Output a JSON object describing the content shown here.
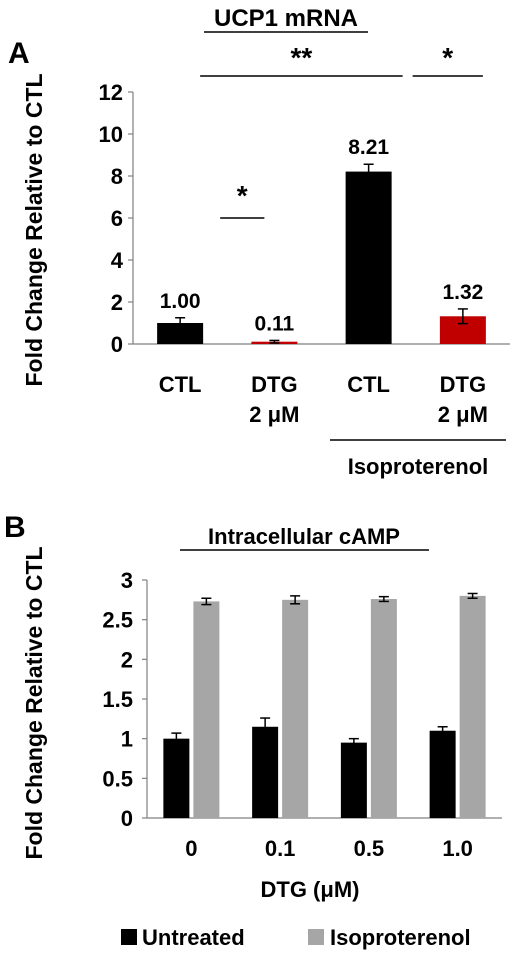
{
  "panels": [
    {
      "letter": "A"
    },
    {
      "letter": "B"
    }
  ],
  "colors": {
    "black": "#000000",
    "red": "#c00000",
    "gray": "#a6a6a6",
    "axis": "#808080"
  },
  "chart_data": [
    {
      "type": "bar",
      "title": "UCP1 mRNA",
      "ylabel": "Fold Change Relative to CTL",
      "ylim": [
        0,
        12
      ],
      "yticks": [
        "0",
        "2",
        "4",
        "6",
        "8",
        "10",
        "12"
      ],
      "categories": [
        {
          "line1": "CTL",
          "line2": ""
        },
        {
          "line1": "DTG",
          "line2": "2 μM"
        },
        {
          "line1": "CTL",
          "line2": ""
        },
        {
          "line1": "DTG",
          "line2": "2 μM"
        }
      ],
      "values": [
        1.0,
        0.11,
        8.21,
        1.32
      ],
      "errors": [
        0.25,
        0.06,
        0.35,
        0.35
      ],
      "value_labels": [
        "1.00",
        "0.11",
        "8.21",
        "1.32"
      ],
      "bar_colors": [
        "#000000",
        "#c00000",
        "#000000",
        "#c00000"
      ],
      "group_label": "Isoproterenol",
      "significance": [
        {
          "label": "*",
          "from": 0,
          "to": 1
        },
        {
          "label": "**",
          "from": 0,
          "to": 2
        },
        {
          "label": "*",
          "from": 2,
          "to": 3
        }
      ]
    },
    {
      "type": "bar",
      "title": "Intracellular cAMP",
      "ylabel": "Fold Change Relative to CTL",
      "xlabel": "DTG (μM)",
      "ylim": [
        0,
        3
      ],
      "yticks": [
        "0",
        "0.5",
        "1",
        "1.5",
        "2",
        "2.5",
        "3"
      ],
      "categories": [
        "0",
        "0.1",
        "0.5",
        "1.0"
      ],
      "series": [
        {
          "name": "Untreated",
          "color": "#000000",
          "values": [
            1.0,
            1.15,
            0.95,
            1.1
          ],
          "errors": [
            0.07,
            0.11,
            0.05,
            0.05
          ]
        },
        {
          "name": "Isoproterenol",
          "color": "#a6a6a6",
          "values": [
            2.73,
            2.75,
            2.76,
            2.8
          ],
          "errors": [
            0.04,
            0.05,
            0.03,
            0.03
          ]
        }
      ],
      "legend_position": "bottom"
    }
  ]
}
